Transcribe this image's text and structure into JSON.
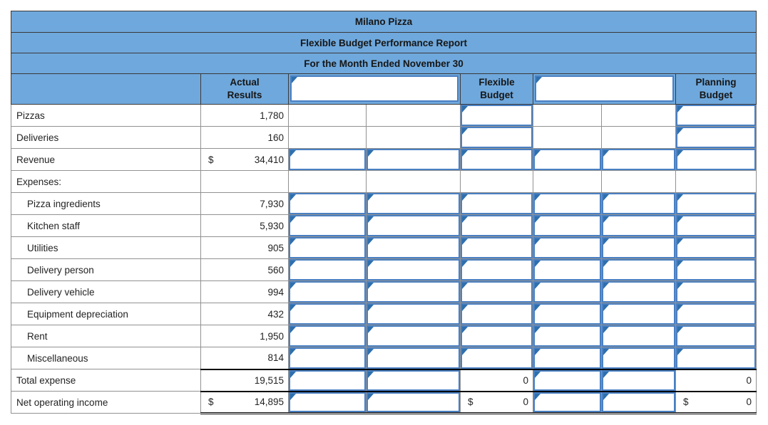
{
  "title_rows": [
    "Milano Pizza",
    "Flexible Budget Performance Report",
    "For the Month Ended November 30"
  ],
  "header": {
    "row_label": "",
    "actual": "Actual\nResults",
    "flexible": "Flexible\nBudget",
    "planning": "Planning\nBudget"
  },
  "icons": {
    "cell_flag": "blue right-pointing flag marking an answer input cell"
  },
  "colors": {
    "header_blue": "#6fa8dc",
    "input_border_blue": "#4a80c2",
    "flag_blue": "#2e6fad",
    "grid_gray": "#919191",
    "dark_border": "#3a3a3a",
    "total_rule_black": "#000000"
  },
  "rows": [
    {
      "label": "Pizzas",
      "actual": {
        "v": "1,780"
      },
      "cells": [
        "b",
        "b",
        "i",
        "b",
        "b",
        "i"
      ]
    },
    {
      "label": "Deliveries",
      "actual": {
        "v": "160"
      },
      "cells": [
        "b",
        "b",
        "i",
        "b",
        "b",
        "i"
      ]
    },
    {
      "label": "Revenue",
      "actual": {
        "$": "$",
        "v": "34,410"
      },
      "cells": [
        "i",
        "i",
        "i",
        "i",
        "i",
        "i"
      ]
    },
    {
      "label": "Expenses:",
      "actual": null,
      "cells": [
        "b",
        "b",
        "b",
        "b",
        "b",
        "b"
      ]
    },
    {
      "label": "Pizza ingredients",
      "indent": true,
      "actual": {
        "v": "7,930"
      },
      "cells": [
        "i",
        "i",
        "i",
        "i",
        "i",
        "i"
      ]
    },
    {
      "label": "Kitchen staff",
      "indent": true,
      "actual": {
        "v": "5,930"
      },
      "cells": [
        "i",
        "i",
        "i",
        "i",
        "i",
        "i"
      ]
    },
    {
      "label": "Utilities",
      "indent": true,
      "actual": {
        "v": "905"
      },
      "cells": [
        "i",
        "i",
        "i",
        "i",
        "i",
        "i"
      ]
    },
    {
      "label": "Delivery person",
      "indent": true,
      "actual": {
        "v": "560"
      },
      "cells": [
        "i",
        "i",
        "i",
        "i",
        "i",
        "i"
      ]
    },
    {
      "label": "Delivery vehicle",
      "indent": true,
      "actual": {
        "v": "994"
      },
      "cells": [
        "i",
        "i",
        "i",
        "i",
        "i",
        "i"
      ]
    },
    {
      "label": "Equipment depreciation",
      "indent": true,
      "actual": {
        "v": "432"
      },
      "cells": [
        "i",
        "i",
        "i",
        "i",
        "i",
        "i"
      ]
    },
    {
      "label": "Rent",
      "indent": true,
      "actual": {
        "v": "1,950"
      },
      "cells": [
        "i",
        "i",
        "i",
        "i",
        "i",
        "i"
      ]
    },
    {
      "label": "Miscellaneous",
      "indent": true,
      "actual": {
        "v": "814"
      },
      "cells": [
        "i",
        "i",
        "i",
        "i",
        "i",
        "i"
      ]
    },
    {
      "label": "Total expense",
      "ruleTop": true,
      "actual": {
        "v": "19,515"
      },
      "cells": [
        "i",
        "i",
        {
          "v": "0"
        },
        "i",
        "i",
        {
          "v": "0"
        }
      ]
    },
    {
      "label": "Net operating income",
      "ruleTop": true,
      "ruleBottom": true,
      "actual": {
        "$": "$",
        "v": "14,895"
      },
      "cells": [
        "i",
        "i",
        {
          "$": "$",
          "v": "0"
        },
        "i",
        "i",
        {
          "$": "$",
          "v": "0"
        }
      ]
    }
  ]
}
